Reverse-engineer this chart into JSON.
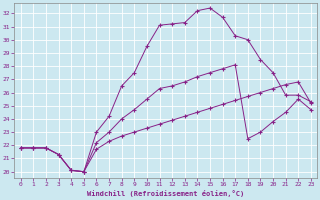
{
  "xlabel": "Windchill (Refroidissement éolien,°C)",
  "bg_color": "#cce8f0",
  "line_color": "#882288",
  "xlim": [
    -0.5,
    23.5
  ],
  "ylim": [
    19.5,
    32.8
  ],
  "xticks": [
    0,
    1,
    2,
    3,
    4,
    5,
    6,
    7,
    8,
    9,
    10,
    11,
    12,
    13,
    14,
    15,
    16,
    17,
    18,
    19,
    20,
    21,
    22,
    23
  ],
  "yticks": [
    20,
    21,
    22,
    23,
    24,
    25,
    26,
    27,
    28,
    29,
    30,
    31,
    32
  ],
  "line1_x": [
    0,
    1,
    2,
    3,
    4,
    5,
    6,
    7,
    8,
    9,
    10,
    11,
    12,
    13,
    14,
    15,
    16,
    17,
    18,
    19,
    20,
    21,
    22,
    23
  ],
  "line1_y": [
    21.8,
    21.8,
    21.8,
    21.3,
    20.1,
    20.0,
    21.7,
    22.3,
    22.7,
    23.0,
    23.3,
    23.6,
    23.9,
    24.2,
    24.5,
    24.8,
    25.1,
    25.4,
    25.7,
    26.0,
    26.3,
    26.6,
    26.8,
    25.2
  ],
  "line2_x": [
    0,
    1,
    2,
    3,
    4,
    5,
    6,
    7,
    8,
    9,
    10,
    11,
    12,
    13,
    14,
    15,
    16,
    17,
    18,
    19,
    20,
    21,
    22,
    23
  ],
  "line2_y": [
    21.8,
    21.8,
    21.8,
    21.3,
    20.1,
    20.0,
    23.0,
    24.2,
    26.5,
    27.5,
    29.5,
    31.1,
    31.2,
    31.3,
    32.2,
    32.4,
    31.7,
    30.3,
    30.0,
    28.5,
    27.5,
    25.8,
    25.8,
    25.3
  ],
  "line3_x": [
    0,
    1,
    2,
    3,
    4,
    5,
    6,
    7,
    8,
    9,
    10,
    11,
    12,
    13,
    14,
    15,
    16,
    17,
    18,
    19,
    20,
    21,
    22,
    23
  ],
  "line3_y": [
    21.8,
    21.8,
    21.8,
    21.3,
    20.1,
    20.0,
    22.2,
    23.0,
    24.0,
    24.7,
    25.5,
    26.3,
    26.5,
    26.8,
    27.2,
    27.5,
    27.8,
    28.1,
    22.5,
    23.0,
    23.8,
    24.5,
    25.5,
    24.7
  ]
}
